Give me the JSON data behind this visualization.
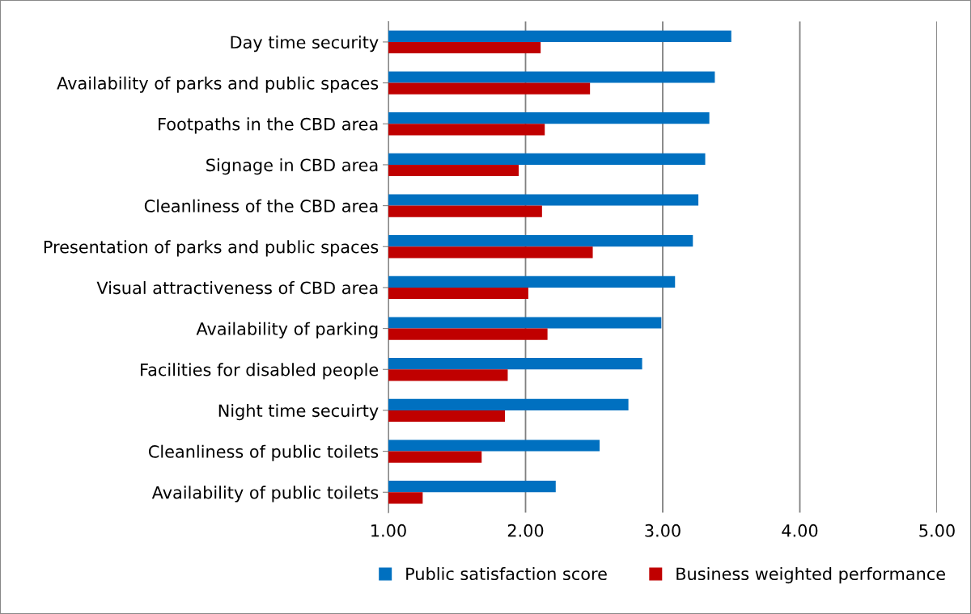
{
  "chart_data": {
    "type": "bar",
    "orientation": "horizontal",
    "categories": [
      "Day time security",
      "Availability of parks and public spaces",
      "Footpaths in the CBD area",
      "Signage in CBD area",
      "Cleanliness of the CBD area",
      "Presentation of parks and public spaces",
      "Visual attractiveness of CBD area",
      "Availability of parking",
      "Facilities for disabled people",
      "Night time secuirty",
      "Cleanliness of public toilets",
      "Availability of public toilets"
    ],
    "series": [
      {
        "name": "Public satisfaction score",
        "color": "#0070c0",
        "values": [
          3.5,
          3.38,
          3.34,
          3.31,
          3.26,
          3.22,
          3.09,
          2.99,
          2.85,
          2.75,
          2.54,
          2.22
        ]
      },
      {
        "name": "Business weighted performance",
        "color": "#c00000",
        "values": [
          2.11,
          2.47,
          2.14,
          1.95,
          2.12,
          2.49,
          2.02,
          2.16,
          1.87,
          1.85,
          1.68,
          1.25
        ]
      }
    ],
    "xlim": [
      1,
      5
    ],
    "xticks": [
      {
        "value": 1,
        "label": "1.00"
      },
      {
        "value": 2,
        "label": "2.00"
      },
      {
        "value": 3,
        "label": "3.00"
      },
      {
        "value": 4,
        "label": "4.00"
      },
      {
        "value": 5,
        "label": "5.00"
      }
    ],
    "grid": "x",
    "legend": "bottom"
  }
}
